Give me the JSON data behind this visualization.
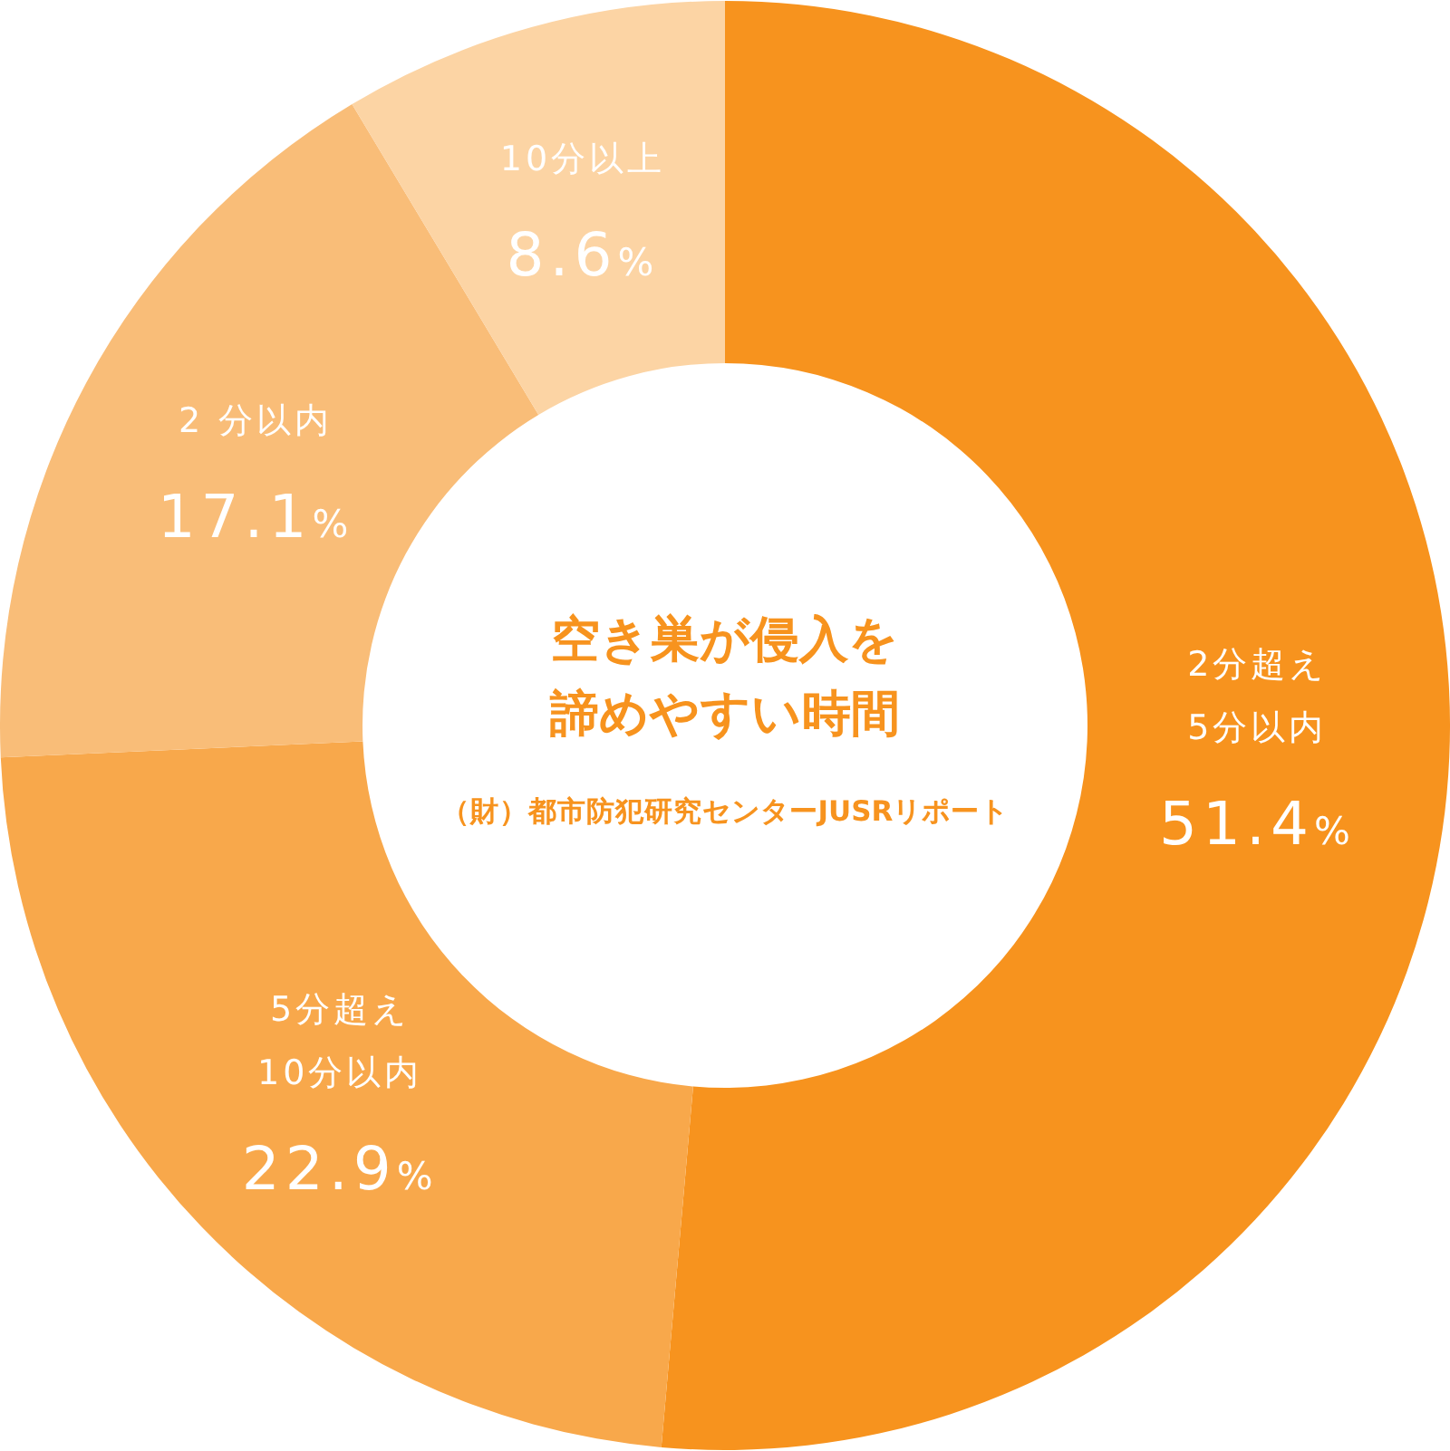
{
  "chart_data": {
    "type": "donut",
    "title": "空き巣が侵入を諦めやすい時間",
    "annotations": [
      "（財）都市防犯研究センターJUSRリポート"
    ],
    "categories": [
      "2分超え\n5分以内",
      "5分超え\n10分以内",
      "2 分以内",
      "10分以上"
    ],
    "values": [
      51.4,
      22.9,
      17.1,
      8.6
    ],
    "value_labels": [
      "51.4%",
      "22.9%",
      "17.1%",
      "8.6%"
    ],
    "colors": [
      "#f7931e",
      "#f8a84b",
      "#f9bd78",
      "#fcd4a4"
    ]
  }
}
